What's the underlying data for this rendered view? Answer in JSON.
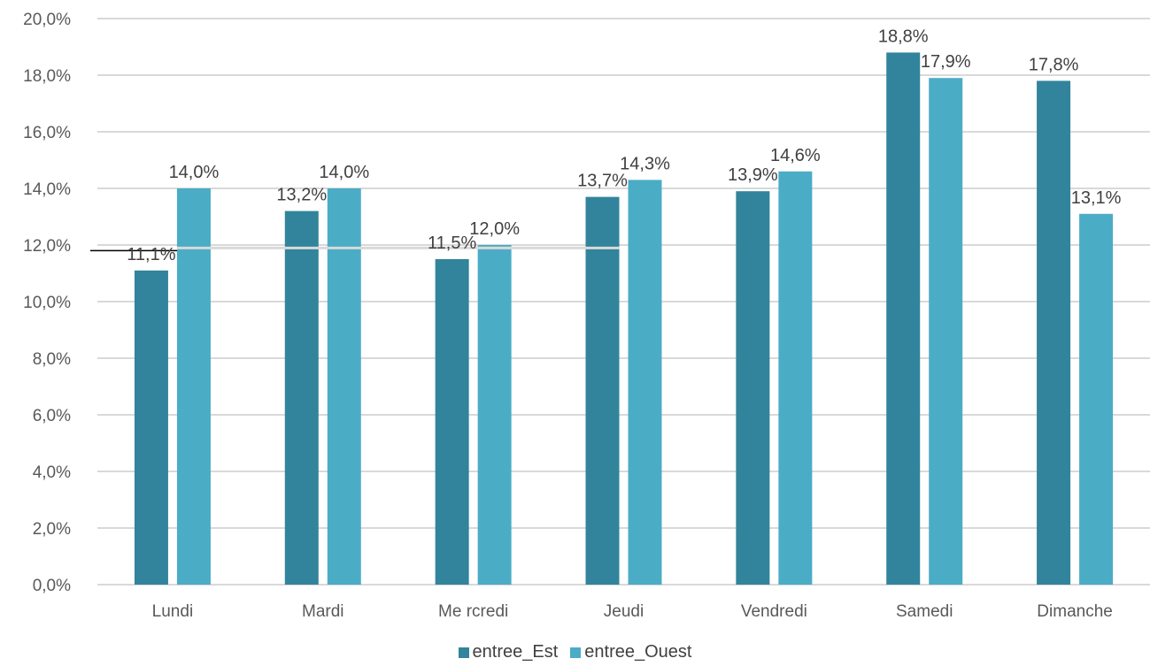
{
  "chart_data": {
    "type": "bar",
    "categories": [
      "Lundi",
      "Mardi",
      "Me rcredi",
      "Jeudi",
      "Vendredi",
      "Samedi",
      "Dimanche"
    ],
    "series": [
      {
        "name": "entree_Est",
        "color": "#31849b",
        "values": [
          11.1,
          13.2,
          11.5,
          13.7,
          13.9,
          18.8,
          17.8
        ],
        "labels": [
          "11,1%",
          "13,2%",
          "11,5%",
          "13,7%",
          "13,9%",
          "18,8%",
          "17,8%"
        ]
      },
      {
        "name": "entree_Ouest",
        "color": "#4bacc6",
        "values": [
          14.0,
          14.0,
          12.0,
          14.3,
          14.6,
          17.9,
          13.1
        ],
        "labels": [
          "14,0%",
          "14,0%",
          "12,0%",
          "14,3%",
          "14,6%",
          "17,9%",
          "13,1%"
        ]
      }
    ],
    "ylim": [
      0,
      20
    ],
    "yticks": [
      0,
      2,
      4,
      6,
      8,
      10,
      12,
      14,
      16,
      18,
      20
    ],
    "ytick_labels": [
      "0,0%",
      "2,0%",
      "4,0%",
      "6,0%",
      "8,0%",
      "10,0%",
      "12,0%",
      "14,0%",
      "16,0%",
      "18,0%",
      "20,0%"
    ],
    "grid": true,
    "gridline_color": "#d9d9d9",
    "reference_line_value": 11.8,
    "legend_position": "bottom",
    "title": "",
    "xlabel": "",
    "ylabel": ""
  }
}
